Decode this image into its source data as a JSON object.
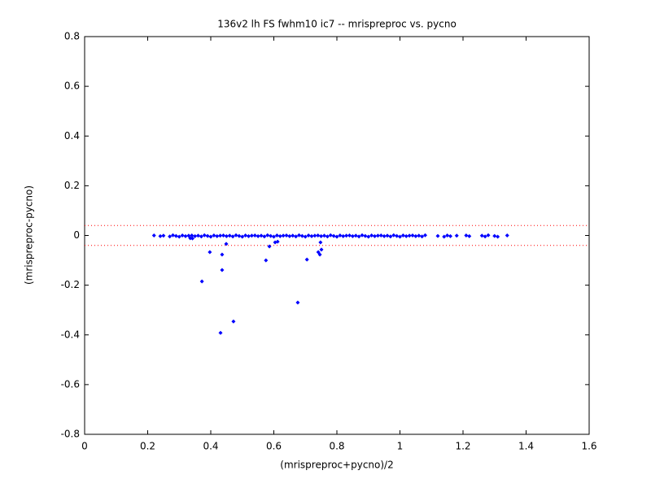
{
  "chart_data": {
    "type": "scatter",
    "title": "136v2 lh FS fwhm10 ic7 -- mrispreproc vs. pycno",
    "x_label": "(mrispreproc+pycno)/2",
    "y_label": "(mrispreproc-pycno)",
    "x": [
      0.22,
      0.24,
      0.25,
      0.27,
      0.28,
      0.29,
      0.3,
      0.31,
      0.32,
      0.33,
      0.34,
      0.35,
      0.36,
      0.37,
      0.38,
      0.39,
      0.4,
      0.41,
      0.42,
      0.43,
      0.44,
      0.45,
      0.46,
      0.47,
      0.48,
      0.49,
      0.5,
      0.51,
      0.52,
      0.53,
      0.54,
      0.55,
      0.56,
      0.57,
      0.58,
      0.59,
      0.6,
      0.61,
      0.62,
      0.63,
      0.64,
      0.65,
      0.66,
      0.67,
      0.68,
      0.69,
      0.7,
      0.71,
      0.72,
      0.73,
      0.74,
      0.75,
      0.76,
      0.77,
      0.78,
      0.79,
      0.8,
      0.81,
      0.82,
      0.83,
      0.84,
      0.85,
      0.86,
      0.87,
      0.88,
      0.89,
      0.9,
      0.91,
      0.92,
      0.93,
      0.94,
      0.95,
      0.96,
      0.97,
      0.98,
      0.99,
      1.0,
      1.01,
      1.02,
      1.03,
      1.04,
      1.05,
      1.06,
      1.07,
      1.08,
      1.12,
      1.14,
      1.15,
      1.16,
      1.18,
      1.21,
      1.22,
      1.26,
      1.27,
      1.28,
      1.3,
      1.31,
      1.34,
      0.335,
      0.397,
      0.372,
      0.436,
      0.436,
      0.449,
      0.431,
      0.472,
      0.575,
      0.586,
      0.604,
      0.612,
      0.676,
      0.705,
      0.741,
      0.746,
      0.751,
      0.748,
      0.342
    ],
    "series": [
      {
        "color": "#0000ff",
        "values": [
          0,
          -0.003,
          -0.001,
          -0.004,
          0.001,
          -0.002,
          -0.005,
          0,
          -0.003,
          -0.001,
          0,
          -0.003,
          -0.001,
          -0.004,
          0.001,
          -0.002,
          -0.005,
          0,
          -0.003,
          -0.001,
          0,
          -0.003,
          -0.001,
          -0.004,
          0.001,
          -0.002,
          -0.005,
          0,
          -0.003,
          -0.001,
          0,
          -0.003,
          -0.001,
          -0.004,
          0.001,
          -0.002,
          -0.005,
          0,
          -0.003,
          -0.001,
          0,
          -0.003,
          -0.001,
          -0.004,
          0.001,
          -0.002,
          -0.005,
          0,
          -0.003,
          -0.001,
          0,
          -0.003,
          -0.001,
          -0.004,
          0.001,
          -0.002,
          -0.005,
          0,
          -0.003,
          -0.001,
          0,
          -0.003,
          -0.001,
          -0.004,
          0.001,
          -0.002,
          -0.005,
          0,
          -0.003,
          -0.001,
          0,
          -0.003,
          -0.001,
          -0.004,
          0.001,
          -0.002,
          -0.005,
          0,
          -0.003,
          -0.001,
          0,
          -0.003,
          -0.001,
          -0.004,
          0.001,
          -0.002,
          -0.005,
          0,
          -0.003,
          -0.001,
          0,
          -0.003,
          -0.001,
          -0.004,
          0.001,
          -0.002,
          -0.005,
          0,
          -0.011,
          -0.067,
          -0.185,
          -0.077,
          -0.139,
          -0.034,
          -0.392,
          -0.346,
          -0.1,
          -0.044,
          -0.028,
          -0.025,
          -0.27,
          -0.097,
          -0.067,
          -0.077,
          -0.057,
          -0.028,
          -0.012
        ]
      }
    ],
    "reference_lines": {
      "values": [
        0.04,
        -0.04
      ],
      "color": "#ff0000"
    },
    "xlim": [
      0,
      1.6
    ],
    "xticks": [
      0,
      0.2,
      0.4,
      0.6,
      0.8,
      1,
      1.2,
      1.4,
      1.6
    ],
    "ylim": [
      -0.8,
      0.8
    ],
    "yticks": [
      -0.8,
      -0.6,
      -0.4,
      -0.2,
      0,
      0.2,
      0.4,
      0.6,
      0.8
    ]
  }
}
